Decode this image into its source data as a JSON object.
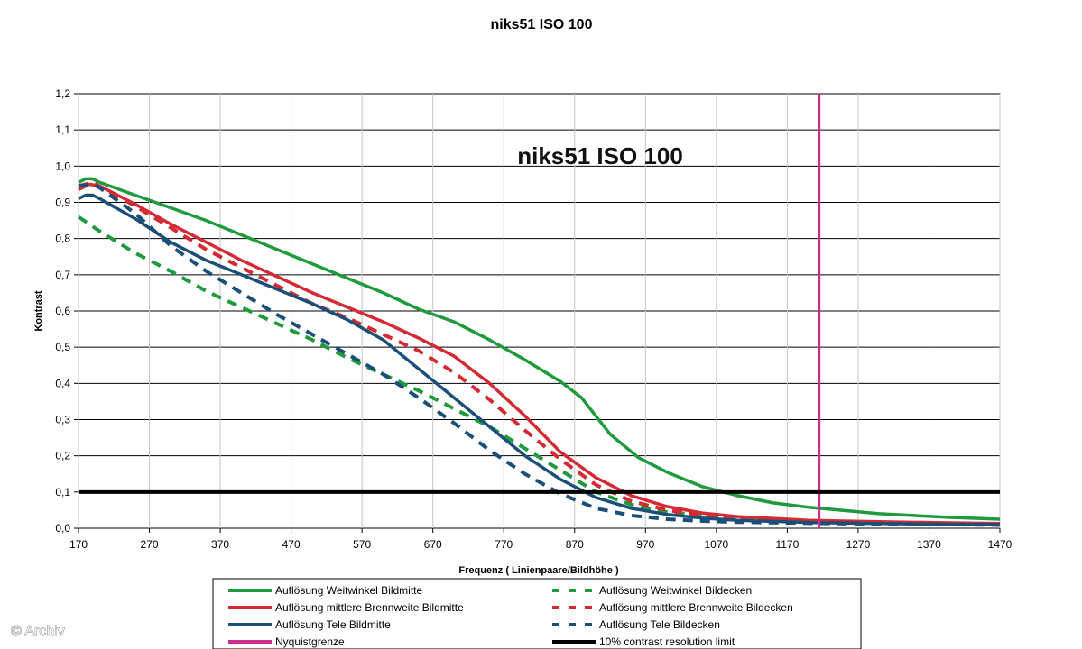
{
  "watermark": "© Archiv",
  "chart_data": {
    "type": "line",
    "title": "niks51 ISO 100",
    "inner_title": "niks51 ISO 100",
    "xlabel": "Frequenz ( Linienpaare/Bildhöhe )",
    "ylabel": "Kontrast",
    "xlim": [
      170,
      1470
    ],
    "ylim": [
      0.0,
      1.2
    ],
    "x_ticks": [
      "170",
      "270",
      "370",
      "470",
      "570",
      "670",
      "770",
      "870",
      "970",
      "1070",
      "1170",
      "1270",
      "1370",
      "1470"
    ],
    "y_ticks": [
      "0,0",
      "0,1",
      "0,2",
      "0,3",
      "0,4",
      "0,5",
      "0,6",
      "0,7",
      "0,8",
      "0,9",
      "1,0",
      "1,1",
      "1,2"
    ],
    "grid": "horizontal",
    "legend_position": "bottom",
    "series": [
      {
        "name": "Auflösung Weitwinkel Bildmitte",
        "color": "#1f9a3c",
        "style": "solid",
        "x": [
          170,
          180,
          190,
          200,
          250,
          300,
          350,
          400,
          450,
          500,
          550,
          600,
          650,
          700,
          750,
          800,
          850,
          880,
          920,
          960,
          1000,
          1050,
          1100,
          1150,
          1200,
          1300,
          1400,
          1470
        ],
        "y": [
          0.955,
          0.965,
          0.965,
          0.955,
          0.92,
          0.885,
          0.85,
          0.81,
          0.77,
          0.73,
          0.69,
          0.65,
          0.605,
          0.57,
          0.52,
          0.465,
          0.405,
          0.36,
          0.26,
          0.195,
          0.155,
          0.115,
          0.09,
          0.07,
          0.058,
          0.04,
          0.03,
          0.025
        ]
      },
      {
        "name": "Auflösung Weitwinkel Bildecken",
        "color": "#1f9a3c",
        "style": "dashed",
        "x": [
          170,
          200,
          250,
          300,
          350,
          400,
          450,
          500,
          550,
          600,
          650,
          700,
          750,
          800,
          850,
          900,
          950,
          1000,
          1050,
          1100,
          1200,
          1300,
          1400,
          1470
        ],
        "y": [
          0.86,
          0.82,
          0.76,
          0.71,
          0.655,
          0.61,
          0.565,
          0.52,
          0.47,
          0.425,
          0.38,
          0.33,
          0.28,
          0.22,
          0.16,
          0.1,
          0.065,
          0.045,
          0.035,
          0.025,
          0.018,
          0.015,
          0.012,
          0.01
        ]
      },
      {
        "name": "Auflösung mittlere Brennweite Bildmitte",
        "color": "#d42a33",
        "style": "solid",
        "x": [
          170,
          185,
          200,
          250,
          300,
          350,
          400,
          450,
          500,
          550,
          600,
          650,
          700,
          750,
          800,
          850,
          900,
          950,
          1000,
          1050,
          1100,
          1200,
          1300,
          1400,
          1470
        ],
        "y": [
          0.935,
          0.95,
          0.945,
          0.895,
          0.84,
          0.79,
          0.74,
          0.695,
          0.65,
          0.61,
          0.57,
          0.525,
          0.475,
          0.4,
          0.31,
          0.21,
          0.14,
          0.09,
          0.06,
          0.042,
          0.032,
          0.022,
          0.018,
          0.015,
          0.013
        ]
      },
      {
        "name": "Auflösung mittlere Brennweite Bildecken",
        "color": "#d42a33",
        "style": "dashed",
        "x": [
          170,
          190,
          250,
          300,
          350,
          400,
          450,
          500,
          550,
          600,
          650,
          700,
          750,
          800,
          850,
          900,
          950,
          1000,
          1050,
          1100,
          1200,
          1300,
          1400,
          1470
        ],
        "y": [
          0.945,
          0.955,
          0.89,
          0.83,
          0.77,
          0.72,
          0.67,
          0.62,
          0.58,
          0.535,
          0.49,
          0.43,
          0.355,
          0.27,
          0.19,
          0.12,
          0.075,
          0.05,
          0.035,
          0.028,
          0.02,
          0.015,
          0.012,
          0.01
        ]
      },
      {
        "name": "Auflösung Tele Bildmitte",
        "color": "#1b4f78",
        "style": "solid",
        "x": [
          170,
          180,
          190,
          200,
          250,
          300,
          350,
          400,
          450,
          500,
          550,
          600,
          650,
          700,
          750,
          800,
          850,
          900,
          950,
          1000,
          1050,
          1100,
          1200,
          1300,
          1400,
          1470
        ],
        "y": [
          0.91,
          0.92,
          0.92,
          0.91,
          0.855,
          0.79,
          0.74,
          0.7,
          0.66,
          0.62,
          0.575,
          0.52,
          0.44,
          0.36,
          0.28,
          0.2,
          0.135,
          0.085,
          0.055,
          0.038,
          0.028,
          0.022,
          0.016,
          0.013,
          0.011,
          0.01
        ]
      },
      {
        "name": "Auflösung Tele Bildecken",
        "color": "#1b4f78",
        "style": "dashed",
        "x": [
          170,
          190,
          200,
          250,
          300,
          350,
          400,
          450,
          500,
          550,
          600,
          650,
          700,
          750,
          800,
          850,
          900,
          950,
          1000,
          1050,
          1100,
          1200,
          1300,
          1400,
          1470
        ],
        "y": [
          0.945,
          0.95,
          0.94,
          0.87,
          0.78,
          0.71,
          0.65,
          0.59,
          0.535,
          0.48,
          0.425,
          0.36,
          0.29,
          0.215,
          0.15,
          0.095,
          0.055,
          0.035,
          0.025,
          0.02,
          0.017,
          0.014,
          0.012,
          0.01,
          0.009
        ]
      }
    ],
    "reference_lines": [
      {
        "name": "Nyquistgrenze",
        "orientation": "vertical",
        "value": 1215,
        "color": "#cc2f8f"
      },
      {
        "name": "10% contrast resolution limit",
        "orientation": "horizontal",
        "value": 0.1,
        "color": "#000000"
      }
    ],
    "legend": [
      {
        "label": "Auflösung Weitwinkel Bildmitte",
        "color": "#1f9a3c",
        "style": "solid"
      },
      {
        "label": "Auflösung Weitwinkel Bildecken",
        "color": "#1f9a3c",
        "style": "dashed"
      },
      {
        "label": "Auflösung mittlere Brennweite Bildmitte",
        "color": "#d42a33",
        "style": "solid"
      },
      {
        "label": "Auflösung mittlere Brennweite Bildecken",
        "color": "#d42a33",
        "style": "dashed"
      },
      {
        "label": "Auflösung Tele Bildmitte",
        "color": "#1b4f78",
        "style": "solid"
      },
      {
        "label": "Auflösung Tele Bildecken",
        "color": "#1b4f78",
        "style": "dashed"
      },
      {
        "label": "Nyquistgrenze",
        "color": "#cc2f8f",
        "style": "solid"
      },
      {
        "label": "10% contrast resolution limit",
        "color": "#000000",
        "style": "solid"
      }
    ]
  }
}
